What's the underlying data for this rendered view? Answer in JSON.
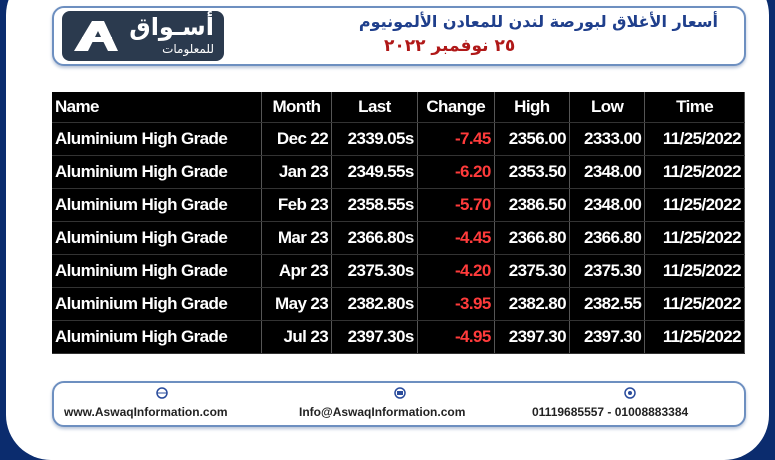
{
  "header": {
    "logo": {
      "name": "أسـواق",
      "subtitle": "للمعلومات"
    },
    "title": "أسعار الأغلاق لبورصة لندن للمعادن الألمونيوم",
    "date": "٢٥ نوفمبر ٢٠٢٢"
  },
  "table": {
    "columns": [
      "Name",
      "Month",
      "Last",
      "Change",
      "High",
      "Low",
      "Time"
    ],
    "rows": [
      [
        "Aluminium High Grade",
        "Dec 22",
        "2339.05s",
        "-7.45",
        "2356.00",
        "2333.00",
        "11/25/2022"
      ],
      [
        "Aluminium High Grade",
        "Jan 23",
        "2349.55s",
        "-6.20",
        "2353.50",
        "2348.00",
        "11/25/2022"
      ],
      [
        "Aluminium High Grade",
        "Feb 23",
        "2358.55s",
        "-5.70",
        "2386.50",
        "2348.00",
        "11/25/2022"
      ],
      [
        "Aluminium High Grade",
        "Mar 23",
        "2366.80s",
        "-4.45",
        "2366.80",
        "2366.80",
        "11/25/2022"
      ],
      [
        "Aluminium High Grade",
        "Apr 23",
        "2375.30s",
        "-4.20",
        "2375.30",
        "2375.30",
        "11/25/2022"
      ],
      [
        "Aluminium High Grade",
        "May 23",
        "2382.80s",
        "-3.95",
        "2382.80",
        "2382.55",
        "11/25/2022"
      ],
      [
        "Aluminium High Grade",
        "Jul 23",
        "2397.30s",
        "-4.95",
        "2397.30",
        "2397.30",
        "11/25/2022"
      ]
    ]
  },
  "footer": {
    "website": "www.AswaqInformation.com",
    "email": "Info@AswaqInformation.com",
    "phone": "01119685557 - 01008883384"
  }
}
